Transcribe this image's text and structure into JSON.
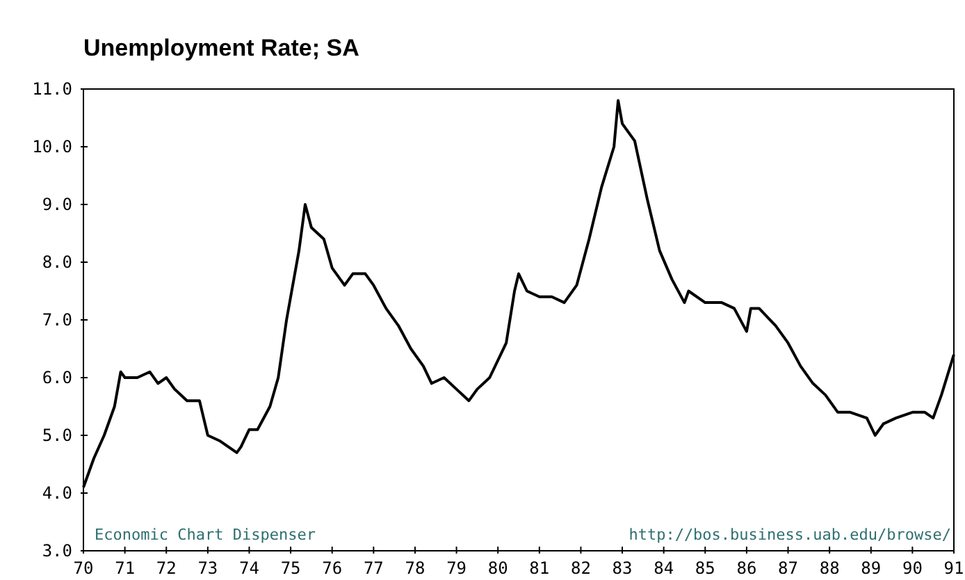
{
  "chart_data": {
    "type": "line",
    "title": "Unemployment Rate; SA",
    "x": [
      70.0,
      70.25,
      70.5,
      70.75,
      70.9,
      71.0,
      71.3,
      71.6,
      71.8,
      72.0,
      72.2,
      72.5,
      72.8,
      73.0,
      73.3,
      73.7,
      73.8,
      74.0,
      74.2,
      74.5,
      74.7,
      74.9,
      75.2,
      75.35,
      75.5,
      75.8,
      76.0,
      76.3,
      76.5,
      76.8,
      77.0,
      77.3,
      77.6,
      77.9,
      78.2,
      78.4,
      78.7,
      79.0,
      79.3,
      79.5,
      79.8,
      80.2,
      80.4,
      80.5,
      80.7,
      81.0,
      81.3,
      81.6,
      81.9,
      82.2,
      82.5,
      82.8,
      82.9,
      83.0,
      83.3,
      83.6,
      83.9,
      84.2,
      84.5,
      84.6,
      85.0,
      85.4,
      85.7,
      86.0,
      86.1,
      86.3,
      86.7,
      87.0,
      87.3,
      87.6,
      87.9,
      88.2,
      88.5,
      88.9,
      89.1,
      89.3,
      89.6,
      90.0,
      90.3,
      90.5,
      90.7,
      91.0
    ],
    "series": [
      {
        "color": "#000000",
        "values": [
          4.1,
          4.6,
          5.0,
          5.5,
          6.1,
          6.0,
          6.0,
          6.1,
          5.9,
          6.0,
          5.8,
          5.6,
          5.6,
          5.0,
          4.9,
          4.7,
          4.8,
          5.1,
          5.1,
          5.5,
          6.0,
          7.0,
          8.2,
          9.0,
          8.6,
          8.4,
          7.9,
          7.6,
          7.8,
          7.8,
          7.6,
          7.2,
          6.9,
          6.5,
          6.2,
          5.9,
          6.0,
          5.8,
          5.6,
          5.8,
          6.0,
          6.6,
          7.5,
          7.8,
          7.5,
          7.4,
          7.4,
          7.3,
          7.6,
          8.4,
          9.3,
          10.0,
          10.8,
          10.4,
          10.1,
          9.1,
          8.2,
          7.7,
          7.3,
          7.5,
          7.3,
          7.3,
          7.2,
          6.8,
          7.2,
          7.2,
          6.9,
          6.6,
          6.2,
          5.9,
          5.7,
          5.4,
          5.4,
          5.3,
          5.0,
          5.2,
          5.3,
          5.4,
          5.4,
          5.3,
          5.7,
          6.4
        ]
      }
    ],
    "xlim": [
      70,
      91
    ],
    "xticks": [
      70,
      71,
      72,
      73,
      74,
      75,
      76,
      77,
      78,
      79,
      80,
      81,
      82,
      83,
      84,
      85,
      86,
      87,
      88,
      89,
      90,
      91
    ],
    "ylim": [
      3.0,
      11.0
    ],
    "yticks": [
      {
        "value": 3,
        "label": "3.0"
      },
      {
        "value": 4,
        "label": "4.0"
      },
      {
        "value": 5,
        "label": "5.0"
      },
      {
        "value": 6,
        "label": "6.0"
      },
      {
        "value": 7,
        "label": "7.0"
      },
      {
        "value": 8,
        "label": "8.0"
      },
      {
        "value": 9,
        "label": "9.0"
      },
      {
        "value": 10,
        "label": "10.0"
      },
      {
        "value": 11,
        "label": "11.0"
      }
    ],
    "annotations": [
      "Economic Chart Dispenser",
      "http://bos.business.uab.edu/browse/"
    ]
  }
}
